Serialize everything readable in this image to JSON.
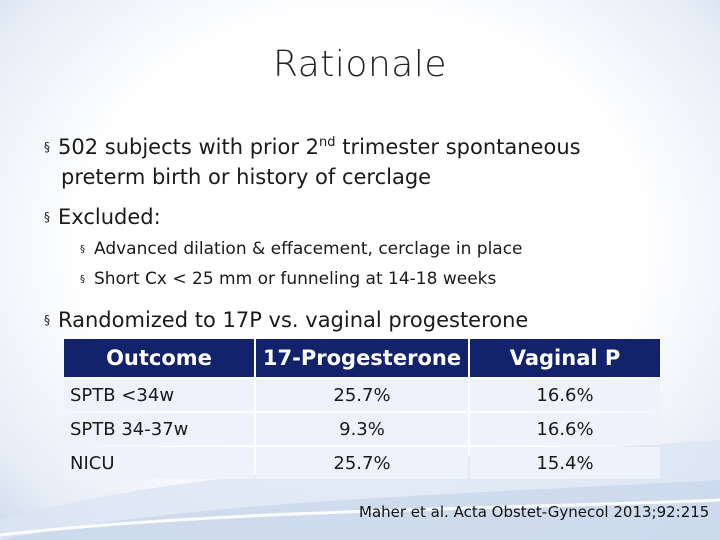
{
  "slide": {
    "title": "Rationale",
    "bullet1": {
      "marker": "§",
      "part1": "502 subjects with prior 2",
      "superscript": "nd",
      "part2": " trimester spontaneous",
      "line2": "preterm birth or history of cerclage"
    },
    "bullet2": {
      "marker": "§",
      "text": "Excluded:"
    },
    "sub_bullets": [
      {
        "marker": "§",
        "text": "Advanced dilation & effacement, cerclage in place"
      },
      {
        "marker": "§",
        "text": "Short Cx < 25 mm or funneling at 14-18 weeks"
      }
    ],
    "bullet3": {
      "marker": "§",
      "text": "Randomized to 17P vs. vaginal progesterone"
    },
    "table": {
      "headers": [
        "Outcome",
        "17-Progesterone",
        "Vaginal P"
      ],
      "rows": [
        [
          "SPTB <34w",
          "25.7%",
          "16.6%"
        ],
        [
          "SPTB 34-37w",
          "9.3%",
          "16.6%"
        ],
        [
          "NICU",
          "25.7%",
          "15.4%"
        ]
      ]
    },
    "citation": "Maher et al. Acta Obstet-Gynecol 2013;92:215"
  }
}
